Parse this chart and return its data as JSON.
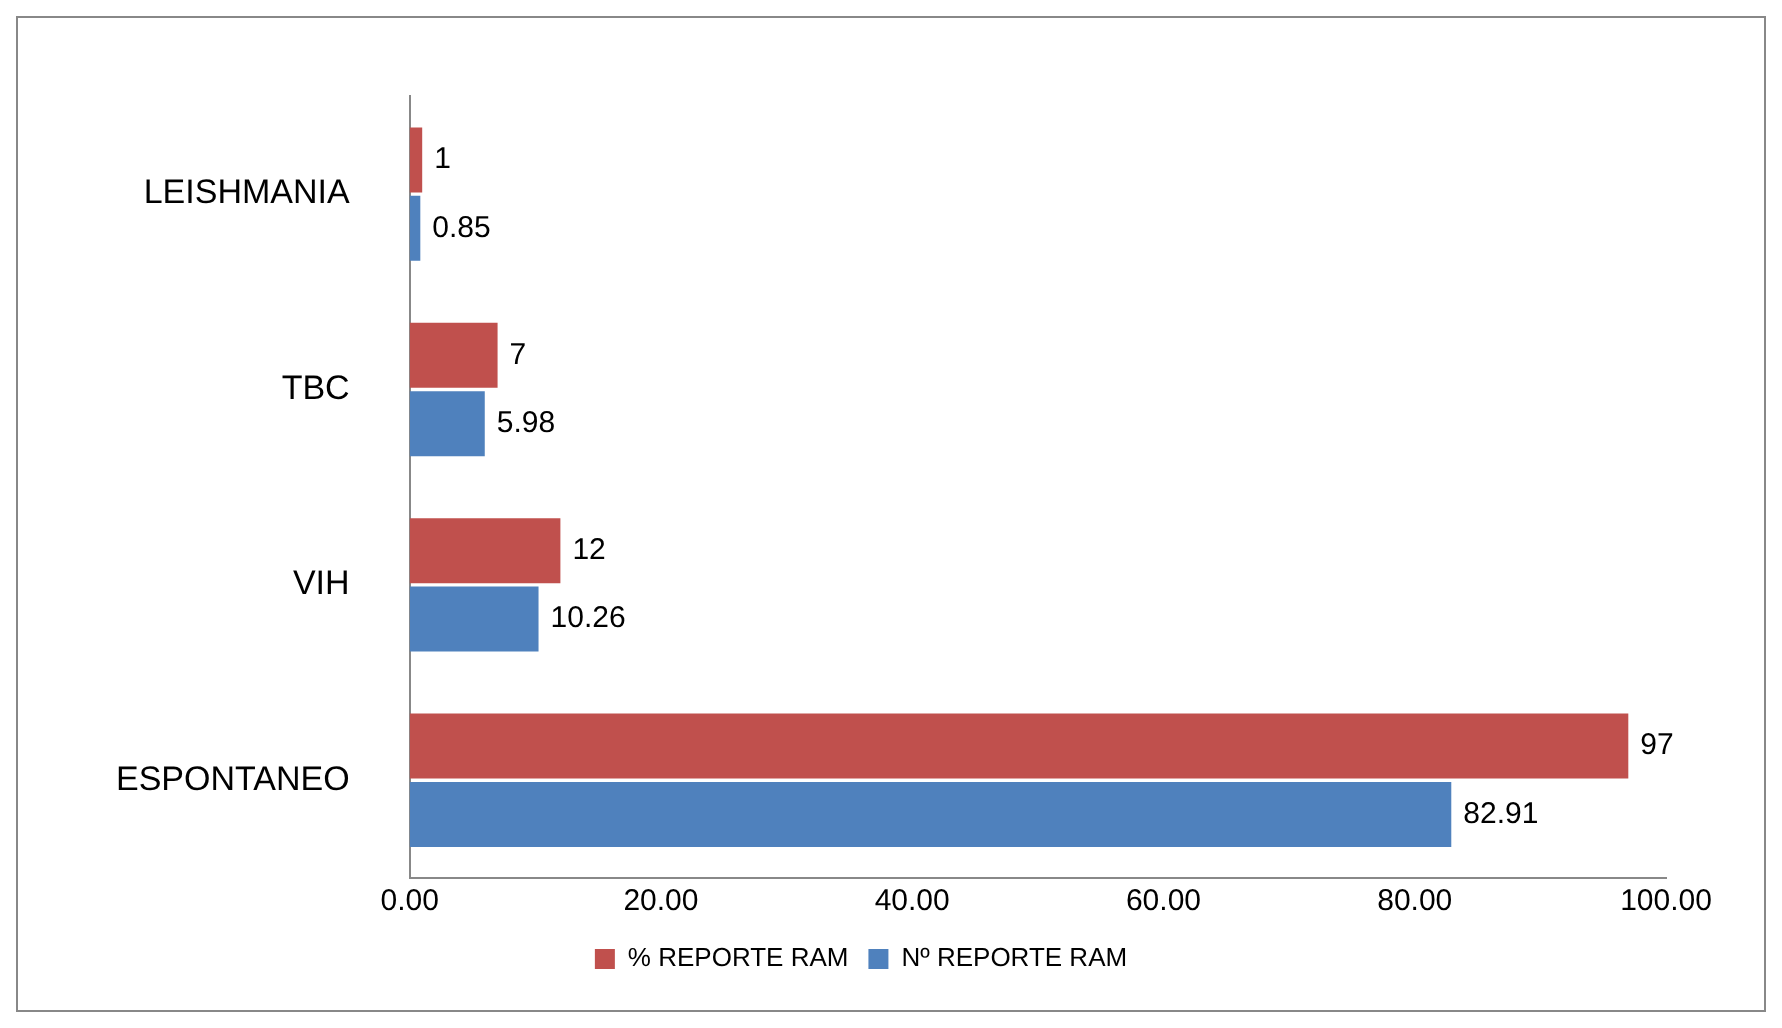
{
  "chart_data": {
    "type": "bar",
    "orientation": "horizontal",
    "categories": [
      "LEISHMANIA",
      "TBC",
      "VIH",
      "ESPONTANEO"
    ],
    "series": [
      {
        "name": "% REPORTE RAM",
        "color": "#c0504d",
        "values": [
          1,
          7,
          12,
          97
        ]
      },
      {
        "name": "Nº REPORTE RAM",
        "color": "#4f81bd",
        "values": [
          0.85,
          5.98,
          10.26,
          82.91
        ]
      }
    ],
    "xlim": [
      0,
      100
    ],
    "xticks": [
      {
        "value": 0,
        "label": "0.00"
      },
      {
        "value": 20,
        "label": "20.00"
      },
      {
        "value": 40,
        "label": "40.00"
      },
      {
        "value": 60,
        "label": "60.00"
      },
      {
        "value": 80,
        "label": "80.00"
      },
      {
        "value": 100,
        "label": "100.00"
      }
    ],
    "data_labels": true,
    "grid": false,
    "legend": "bottom"
  }
}
